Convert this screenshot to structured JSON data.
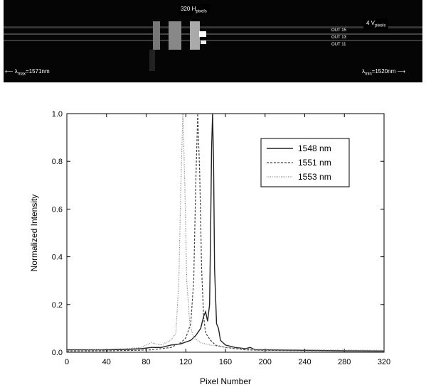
{
  "camera": {
    "top_label": "320 H",
    "top_label_sub": "pixels",
    "right_box": "4 V",
    "right_box_sub": "pixels",
    "out_labels": [
      "OUT 15",
      "OUT 13",
      "OUT 11"
    ],
    "left_label": "λ",
    "left_label_sub": "max",
    "left_value": "=1571nm",
    "right_label": "λ",
    "right_label_sub": "min",
    "right_value": "=1520nm"
  },
  "chart_data": {
    "type": "line",
    "xlabel": "Pixel Number",
    "ylabel": "Normalized Intensity",
    "xlim": [
      0,
      320
    ],
    "ylim": [
      0,
      1.0
    ],
    "xticks": [
      "0",
      "40",
      "80",
      "120",
      "160",
      "200",
      "240",
      "280",
      "320"
    ],
    "yticks": [
      "0.0",
      "0.2",
      "0.4",
      "0.6",
      "0.8",
      "1.0"
    ],
    "legend_position": "top-right",
    "series": [
      {
        "name": "1548 nm",
        "style": "solid",
        "points": [
          [
            0,
            0.01
          ],
          [
            20,
            0.01
          ],
          [
            40,
            0.01
          ],
          [
            60,
            0.012
          ],
          [
            75,
            0.015
          ],
          [
            85,
            0.02
          ],
          [
            95,
            0.02
          ],
          [
            105,
            0.03
          ],
          [
            115,
            0.035
          ],
          [
            125,
            0.05
          ],
          [
            130,
            0.07
          ],
          [
            135,
            0.1
          ],
          [
            138,
            0.15
          ],
          [
            140,
            0.17
          ],
          [
            142,
            0.13
          ],
          [
            144,
            0.2
          ],
          [
            145,
            0.5
          ],
          [
            146,
            0.85
          ],
          [
            147,
            1.0
          ],
          [
            148,
            0.8
          ],
          [
            149,
            0.35
          ],
          [
            151,
            0.12
          ],
          [
            153,
            0.1
          ],
          [
            155,
            0.05
          ],
          [
            160,
            0.03
          ],
          [
            170,
            0.02
          ],
          [
            180,
            0.015
          ],
          [
            185,
            0.02
          ],
          [
            190,
            0.01
          ],
          [
            200,
            0.01
          ],
          [
            240,
            0.008
          ],
          [
            280,
            0.006
          ],
          [
            320,
            0.005
          ]
        ]
      },
      {
        "name": "1551 nm",
        "style": "dashed",
        "points": [
          [
            0,
            0.005
          ],
          [
            40,
            0.006
          ],
          [
            70,
            0.008
          ],
          [
            85,
            0.01
          ],
          [
            95,
            0.015
          ],
          [
            105,
            0.02
          ],
          [
            115,
            0.04
          ],
          [
            120,
            0.06
          ],
          [
            125,
            0.12
          ],
          [
            128,
            0.3
          ],
          [
            130,
            0.7
          ],
          [
            132,
            1.0
          ],
          [
            134,
            0.75
          ],
          [
            136,
            0.35
          ],
          [
            138,
            0.15
          ],
          [
            140,
            0.08
          ],
          [
            145,
            0.05
          ],
          [
            150,
            0.03
          ],
          [
            160,
            0.02
          ],
          [
            180,
            0.01
          ],
          [
            200,
            0.008
          ],
          [
            320,
            0.004
          ]
        ]
      },
      {
        "name": "1553 nm",
        "style": "dotted",
        "points": [
          [
            0,
            0.008
          ],
          [
            30,
            0.01
          ],
          [
            60,
            0.015
          ],
          [
            75,
            0.02
          ],
          [
            85,
            0.04
          ],
          [
            95,
            0.03
          ],
          [
            105,
            0.05
          ],
          [
            110,
            0.08
          ],
          [
            113,
            0.3
          ],
          [
            115,
            0.7
          ],
          [
            117,
            1.0
          ],
          [
            119,
            0.7
          ],
          [
            121,
            0.3
          ],
          [
            124,
            0.12
          ],
          [
            128,
            0.06
          ],
          [
            135,
            0.04
          ],
          [
            145,
            0.03
          ],
          [
            160,
            0.02
          ],
          [
            190,
            0.012
          ],
          [
            240,
            0.01
          ],
          [
            320,
            0.008
          ]
        ]
      }
    ]
  }
}
